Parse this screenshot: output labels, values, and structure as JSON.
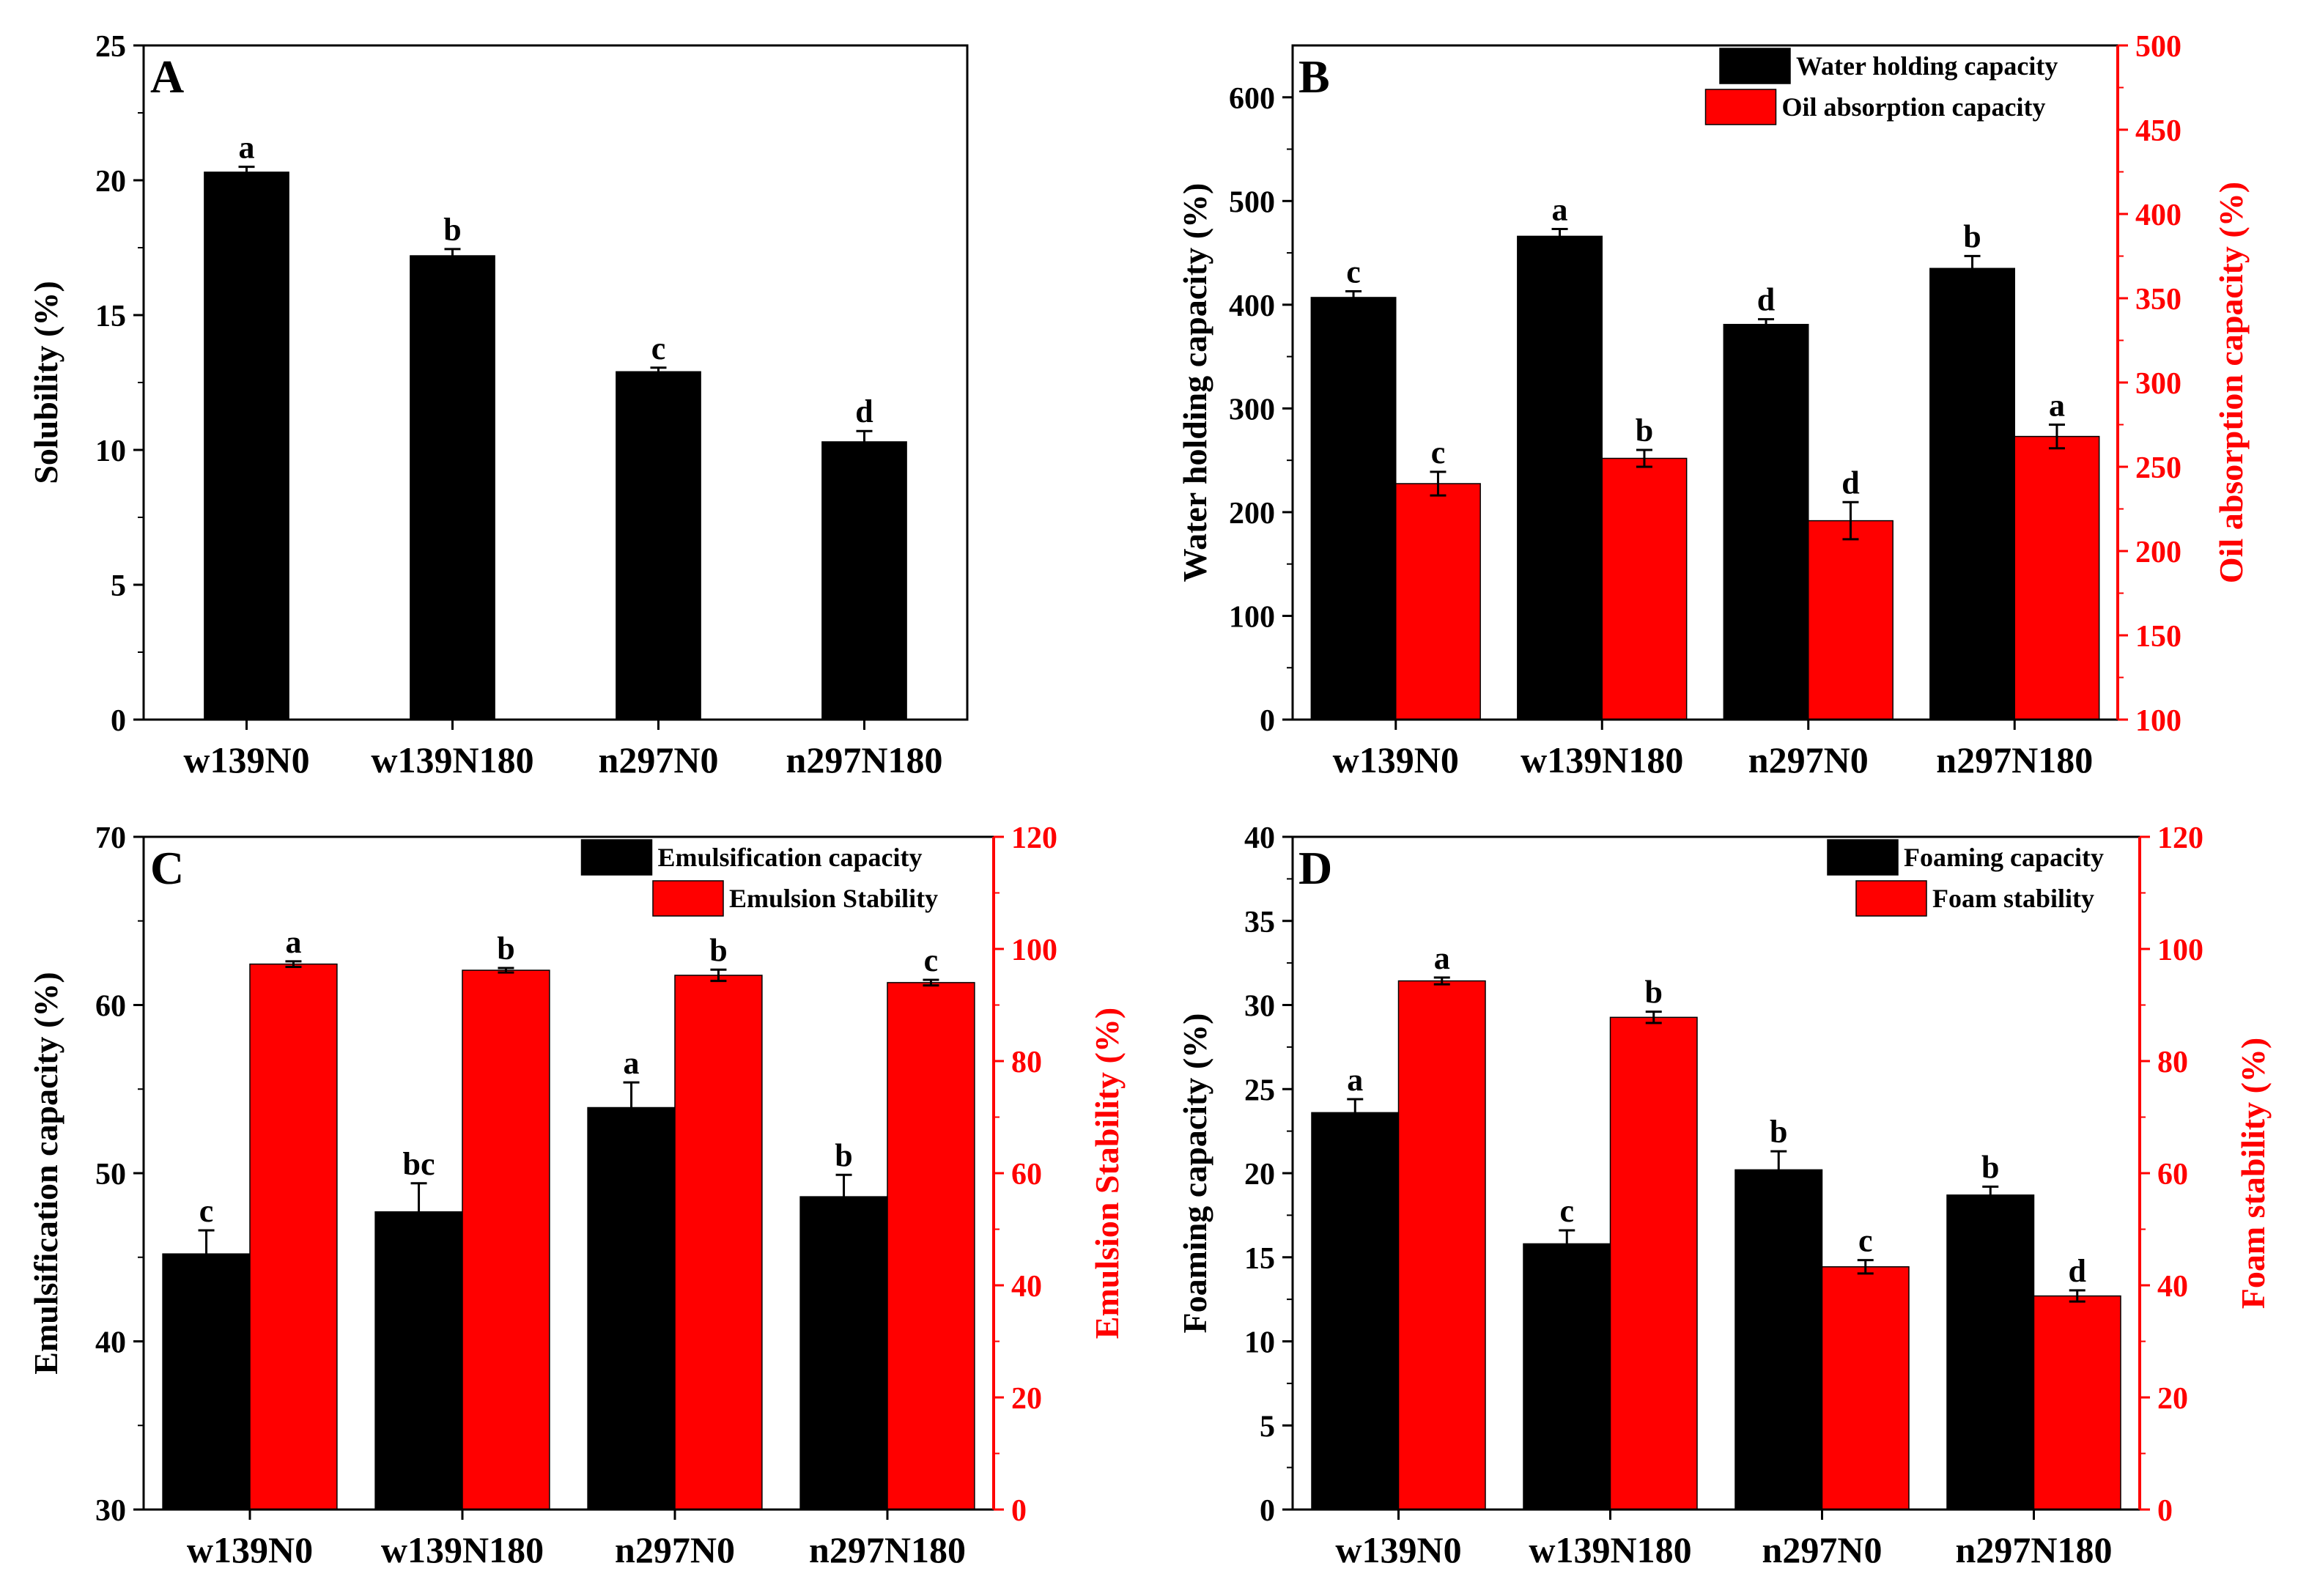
{
  "colors": {
    "black": "#000000",
    "red": "#ff0000"
  },
  "chart_data": [
    {
      "id": "A",
      "type": "bar",
      "panel_label": "A",
      "categories": [
        "w139N0",
        "w139N180",
        "n297N0",
        "n297N180"
      ],
      "series": [
        {
          "name": "Solubility",
          "axis": "left",
          "color": "#000000",
          "values": [
            20.3,
            17.2,
            12.9,
            10.3
          ],
          "errors": [
            0.2,
            0.25,
            0.15,
            0.4
          ],
          "letters": [
            "a",
            "b",
            "c",
            "d"
          ]
        }
      ],
      "ylabel": "Solubility (%)",
      "ylim": [
        0,
        25
      ],
      "yticks": [
        0,
        5,
        10,
        15,
        20,
        25
      ],
      "ytick_labels": [
        "0",
        "5",
        "10",
        "15",
        "20",
        "25"
      ]
    },
    {
      "id": "B",
      "type": "bar",
      "panel_label": "B",
      "categories": [
        "w139N0",
        "w139N180",
        "n297N0",
        "n297N180"
      ],
      "series": [
        {
          "name": "Water holding capacity",
          "axis": "left",
          "color": "#000000",
          "values": [
            407,
            466,
            381,
            435
          ],
          "errors": [
            6,
            7,
            5,
            12
          ],
          "letters": [
            "c",
            "a",
            "d",
            "b"
          ]
        },
        {
          "name": "Oil absorption capacity",
          "axis": "right",
          "color": "#ff0000",
          "values": [
            240,
            255,
            218,
            268
          ],
          "errors": [
            7,
            5,
            11,
            7
          ],
          "letters": [
            "c",
            "b",
            "d",
            "a"
          ]
        }
      ],
      "ylabel": "Water holding capacity (%)",
      "ylim": [
        0,
        650
      ],
      "yticks": [
        0,
        100,
        200,
        300,
        400,
        500,
        600
      ],
      "ytick_labels": [
        "0",
        "100",
        "200",
        "300",
        "400",
        "500",
        "600"
      ],
      "y2label": "Oil absorption capacity (%)",
      "y2lim": [
        100,
        500
      ],
      "y2ticks": [
        100,
        150,
        200,
        250,
        300,
        350,
        400,
        450,
        500
      ],
      "y2tick_labels": [
        "100",
        "150",
        "200",
        "250",
        "300",
        "350",
        "400",
        "450",
        "500"
      ],
      "legend_position": "top-right"
    },
    {
      "id": "C",
      "type": "bar",
      "panel_label": "C",
      "categories": [
        "w139N0",
        "w139N180",
        "n297N0",
        "n297N180"
      ],
      "series": [
        {
          "name": "Emulsification capacity",
          "axis": "left",
          "color": "#000000",
          "values": [
            45.2,
            47.7,
            53.9,
            48.6
          ],
          "errors": [
            1.4,
            1.7,
            1.5,
            1.3
          ],
          "letters": [
            "c",
            "bc",
            "a",
            "b"
          ]
        },
        {
          "name": "Emulsion Stability",
          "axis": "right",
          "color": "#ff0000",
          "values": [
            97.3,
            96.2,
            95.3,
            94.0
          ],
          "errors": [
            0.5,
            0.4,
            1.0,
            0.5
          ],
          "letters": [
            "a",
            "b",
            "b",
            "c"
          ]
        }
      ],
      "ylabel": "Emulsification capacity  (%)",
      "ylim": [
        30,
        70
      ],
      "yticks": [
        30,
        40,
        50,
        60,
        70
      ],
      "ytick_labels": [
        "30",
        "40",
        "50",
        "60",
        "70"
      ],
      "y2label": "Emulsion Stability (%)",
      "y2lim": [
        0,
        120
      ],
      "y2ticks": [
        0,
        20,
        40,
        60,
        80,
        100,
        120
      ],
      "y2tick_labels": [
        "0",
        "20",
        "40",
        "60",
        "80",
        "100",
        "120"
      ],
      "legend_position": "top-right"
    },
    {
      "id": "D",
      "type": "bar",
      "panel_label": "D",
      "categories": [
        "w139N0",
        "w139N180",
        "n297N0",
        "n297N180"
      ],
      "series": [
        {
          "name": "Foaming capacity",
          "axis": "left",
          "color": "#000000",
          "values": [
            23.6,
            15.8,
            20.2,
            18.7
          ],
          "errors": [
            0.8,
            0.8,
            1.1,
            0.5
          ],
          "letters": [
            "a",
            "c",
            "b",
            "b"
          ]
        },
        {
          "name": "Foam stability",
          "axis": "right",
          "color": "#ff0000",
          "values": [
            94.3,
            87.8,
            43.3,
            38.1
          ],
          "errors": [
            0.6,
            1.0,
            1.2,
            1.0
          ],
          "letters": [
            "a",
            "b",
            "c",
            "d"
          ]
        }
      ],
      "ylabel": "Foaming capacity (%)",
      "ylim": [
        0,
        40
      ],
      "yticks": [
        0,
        5,
        10,
        15,
        20,
        25,
        30,
        35,
        40
      ],
      "ytick_labels": [
        "0",
        "5",
        "10",
        "15",
        "20",
        "25",
        "30",
        "35",
        "40"
      ],
      "y2label": "Foam stability (%)",
      "y2lim": [
        0,
        120
      ],
      "y2ticks": [
        0,
        20,
        40,
        60,
        80,
        100,
        120
      ],
      "y2tick_labels": [
        "0",
        "20",
        "40",
        "60",
        "80",
        "100",
        "120"
      ],
      "legend_position": "top-right"
    }
  ]
}
